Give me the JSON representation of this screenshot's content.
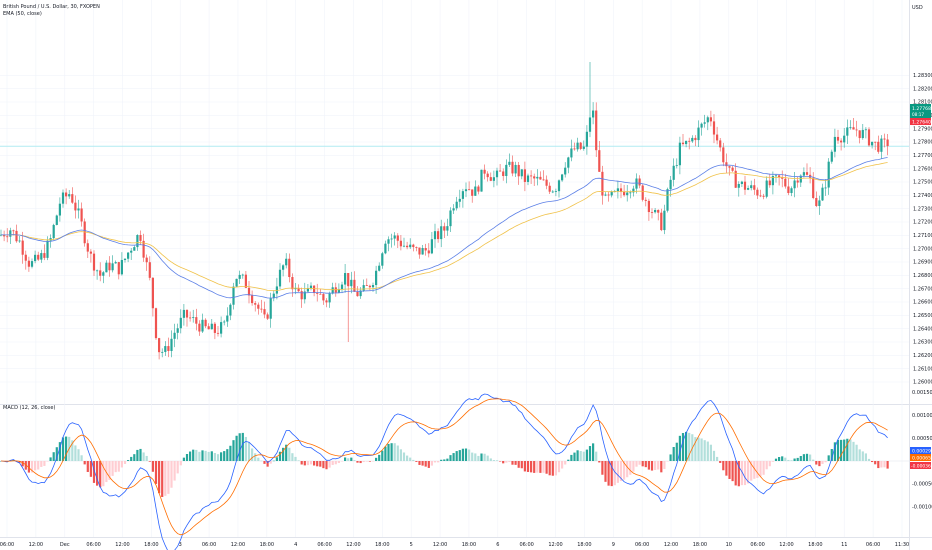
{
  "header": {
    "symbol_title": "British Pound / U.S. Dollar, 30, FXOPEN",
    "indicator_label": "EMA (50, close)",
    "currency": "USD"
  },
  "macd_panel": {
    "label": "MACD (12, 26, close)"
  },
  "price_tags": {
    "last_price": "1.27768",
    "countdown": "08:17",
    "ema_value": "1.27640"
  },
  "macd_tags": {
    "macd_value": "0.00029",
    "signal_value": "0.00065",
    "histogram_value": "-0.00036"
  },
  "colors": {
    "up": "#26a69a",
    "down": "#ef5350",
    "up_hist_light": "#b2dfdb",
    "down_hist_light": "#ffcdd2",
    "ema": "#5b7fe6",
    "ema_secondary": "#f0c24a",
    "macd_line": "#2962ff",
    "signal_line": "#ff6d00",
    "last_price_bg": "#089981",
    "ema_tag_bg": "#f23645",
    "macd_tag_bg": "#2962ff",
    "signal_tag_bg": "#ff6d00",
    "hist_tag_bg": "#f23645",
    "price_line": "#b2ebf2"
  },
  "chart_data": [
    {
      "type": "candlestick",
      "title": "British Pound / U.S. Dollar, 30, FXOPEN",
      "overlay": "EMA (50, close)",
      "ylim": [
        1.2585,
        1.2885
      ],
      "y_ticks": [
        "1.26000",
        "1.26100",
        "1.26200",
        "1.26300",
        "1.26400",
        "1.26500",
        "1.26600",
        "1.26700",
        "1.26800",
        "1.26900",
        "1.27000",
        "1.27100",
        "1.27200",
        "1.27300",
        "1.27400",
        "1.27500",
        "1.27600",
        "1.27700",
        "1.27800",
        "1.27900",
        "1.28000",
        "1.28100",
        "1.28200",
        "1.28300"
      ],
      "x_ticks": [
        "06:00",
        "12:00",
        "Dec",
        "06:00",
        "12:00",
        "18:00",
        "3",
        "06:00",
        "12:00",
        "18:00",
        "4",
        "06:00",
        "12:00",
        "18:00",
        "5",
        "12:00",
        "18:00",
        "6",
        "06:00",
        "12:00",
        "18:00",
        "9",
        "06:00",
        "12:00",
        "18:00",
        "10",
        "06:00",
        "12:00",
        "18:00",
        "11",
        "06:00",
        "11:30"
      ],
      "last_price": 1.27768,
      "ema_last": 1.2764,
      "anchors": [
        [
          0,
          1.271
        ],
        [
          10,
          1.2715
        ],
        [
          20,
          1.2705
        ],
        [
          30,
          1.2688
        ],
        [
          40,
          1.2692
        ],
        [
          50,
          1.2705
        ],
        [
          60,
          1.2735
        ],
        [
          70,
          1.2742
        ],
        [
          80,
          1.2722
        ],
        [
          90,
          1.2695
        ],
        [
          100,
          1.268
        ],
        [
          110,
          1.2688
        ],
        [
          120,
          1.2685
        ],
        [
          130,
          1.27
        ],
        [
          140,
          1.2712
        ],
        [
          150,
          1.2675
        ],
        [
          158,
          1.2625
        ],
        [
          165,
          1.2622
        ],
        [
          175,
          1.2638
        ],
        [
          185,
          1.265
        ],
        [
          195,
          1.2645
        ],
        [
          205,
          1.264
        ],
        [
          215,
          1.2638
        ],
        [
          225,
          1.2642
        ],
        [
          235,
          1.268
        ],
        [
          245,
          1.2675
        ],
        [
          255,
          1.266
        ],
        [
          265,
          1.2645
        ],
        [
          275,
          1.2672
        ],
        [
          285,
          1.269
        ],
        [
          295,
          1.2668
        ],
        [
          305,
          1.2665
        ],
        [
          315,
          1.267
        ],
        [
          325,
          1.266
        ],
        [
          335,
          1.2672
        ],
        [
          345,
          1.268
        ],
        [
          355,
          1.2666
        ],
        [
          365,
          1.2668
        ],
        [
          375,
          1.268
        ],
        [
          385,
          1.2708
        ],
        [
          395,
          1.2708
        ],
        [
          405,
          1.2702
        ],
        [
          415,
          1.2698
        ],
        [
          425,
          1.2698
        ],
        [
          435,
          1.2708
        ],
        [
          445,
          1.2715
        ],
        [
          455,
          1.2738
        ],
        [
          465,
          1.2748
        ],
        [
          475,
          1.2742
        ],
        [
          485,
          1.276
        ],
        [
          495,
          1.2752
        ],
        [
          505,
          1.276
        ],
        [
          515,
          1.276
        ],
        [
          525,
          1.2752
        ],
        [
          535,
          1.2752
        ],
        [
          545,
          1.2748
        ],
        [
          555,
          1.2745
        ],
        [
          565,
          1.2765
        ],
        [
          575,
          1.2775
        ],
        [
          585,
          1.2775
        ],
        [
          592,
          1.281
        ],
        [
          598,
          1.276
        ],
        [
          605,
          1.2735
        ],
        [
          615,
          1.274
        ],
        [
          625,
          1.2745
        ],
        [
          635,
          1.275
        ],
        [
          645,
          1.2738
        ],
        [
          655,
          1.2725
        ],
        [
          662,
          1.2718
        ],
        [
          670,
          1.275
        ],
        [
          680,
          1.2775
        ],
        [
          690,
          1.278
        ],
        [
          700,
          1.279
        ],
        [
          710,
          1.28
        ],
        [
          720,
          1.2775
        ],
        [
          730,
          1.2755
        ],
        [
          740,
          1.2748
        ],
        [
          750,
          1.2745
        ],
        [
          760,
          1.2742
        ],
        [
          770,
          1.2748
        ],
        [
          780,
          1.2752
        ],
        [
          790,
          1.2745
        ],
        [
          800,
          1.2758
        ],
        [
          810,
          1.2752
        ],
        [
          818,
          1.273
        ],
        [
          825,
          1.2748
        ],
        [
          835,
          1.2785
        ],
        [
          845,
          1.2785
        ],
        [
          855,
          1.279
        ],
        [
          865,
          1.2785
        ],
        [
          875,
          1.2778
        ],
        [
          884,
          1.2777
        ],
        [
          888,
          1.278
        ]
      ],
      "macd_ylim": [
        -0.0012,
        0.0012
      ],
      "macd_ticks": [
        "0.00150",
        "0.00100",
        "0.00050",
        "-0.00050",
        "-0.00100"
      ]
    }
  ]
}
